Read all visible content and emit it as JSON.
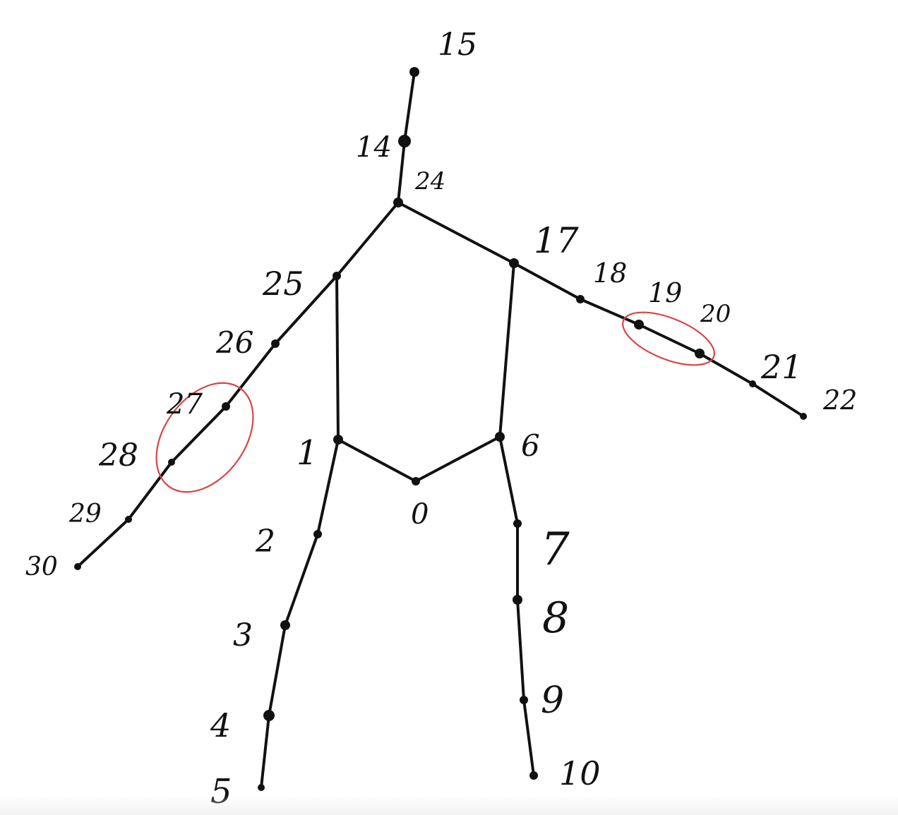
{
  "diagram": {
    "joints": [
      {
        "id": "0",
        "label": "0"
      },
      {
        "id": "1",
        "label": "1"
      },
      {
        "id": "2",
        "label": "2"
      },
      {
        "id": "3",
        "label": "3"
      },
      {
        "id": "4",
        "label": "4"
      },
      {
        "id": "5",
        "label": "5"
      },
      {
        "id": "6",
        "label": "6"
      },
      {
        "id": "7",
        "label": "7"
      },
      {
        "id": "8",
        "label": "8"
      },
      {
        "id": "9",
        "label": "9"
      },
      {
        "id": "10",
        "label": "10"
      },
      {
        "id": "14",
        "label": "14"
      },
      {
        "id": "15",
        "label": "15"
      },
      {
        "id": "17",
        "label": "17"
      },
      {
        "id": "18",
        "label": "18"
      },
      {
        "id": "19",
        "label": "19"
      },
      {
        "id": "20",
        "label": "20"
      },
      {
        "id": "21",
        "label": "21"
      },
      {
        "id": "22",
        "label": "22"
      },
      {
        "id": "24",
        "label": "24"
      },
      {
        "id": "25",
        "label": "25"
      },
      {
        "id": "26",
        "label": "26"
      },
      {
        "id": "27",
        "label": "27"
      },
      {
        "id": "28",
        "label": "28"
      },
      {
        "id": "29",
        "label": "29"
      },
      {
        "id": "30",
        "label": "30"
      }
    ],
    "bones": [
      [
        "15",
        "14"
      ],
      [
        "14",
        "24"
      ],
      [
        "24",
        "25"
      ],
      [
        "24",
        "17"
      ],
      [
        "25",
        "26"
      ],
      [
        "26",
        "27"
      ],
      [
        "27",
        "28"
      ],
      [
        "28",
        "29"
      ],
      [
        "29",
        "30"
      ],
      [
        "17",
        "18"
      ],
      [
        "18",
        "19"
      ],
      [
        "19",
        "20"
      ],
      [
        "20",
        "21"
      ],
      [
        "21",
        "22"
      ],
      [
        "25",
        "1"
      ],
      [
        "17",
        "6"
      ],
      [
        "1",
        "0"
      ],
      [
        "0",
        "6"
      ],
      [
        "1",
        "2"
      ],
      [
        "2",
        "3"
      ],
      [
        "3",
        "4"
      ],
      [
        "4",
        "5"
      ],
      [
        "6",
        "7"
      ],
      [
        "7",
        "8"
      ],
      [
        "8",
        "9"
      ],
      [
        "9",
        "10"
      ]
    ],
    "highlighted_groups": [
      [
        "27",
        "28"
      ],
      [
        "19",
        "20"
      ]
    ],
    "colors": {
      "ink": "#111111",
      "highlight": "#d94545",
      "background": "#ffffff"
    }
  }
}
